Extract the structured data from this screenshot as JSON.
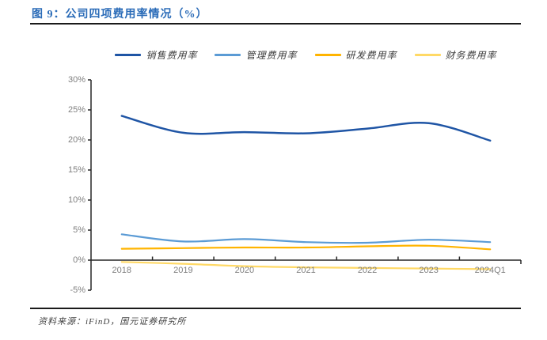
{
  "figure": {
    "title": "图 9：公司四项费用率情况（%）",
    "source": "资料来源：iFinD，国元证券研究所"
  },
  "colors": {
    "title_text": "#2B6CB8",
    "axis_line": "#262626",
    "tick_label": "#7F7F7F",
    "divider_rule": "#1A1A1A",
    "legend_text": "#3D3D3D"
  },
  "chart_data": {
    "type": "line",
    "title": "公司四项费用率情况（%）",
    "categories": [
      "2018",
      "2019",
      "2020",
      "2021",
      "2022",
      "2023",
      "2024Q1"
    ],
    "series": [
      {
        "name": "销售费用率",
        "color": "#1F55A5",
        "values": [
          24.0,
          21.2,
          21.3,
          21.1,
          21.9,
          22.8,
          19.9
        ]
      },
      {
        "name": "管理费用率",
        "color": "#5B9BD5",
        "values": [
          4.3,
          3.1,
          3.5,
          3.0,
          2.9,
          3.4,
          3.0
        ]
      },
      {
        "name": "研发费用率",
        "color": "#FFB400",
        "values": [
          1.9,
          2.0,
          2.1,
          2.1,
          2.3,
          2.4,
          1.8
        ]
      },
      {
        "name": "财务费用率",
        "color": "#FFD966",
        "values": [
          -0.3,
          -0.6,
          -1.0,
          -1.2,
          -1.3,
          -1.4,
          -1.5
        ]
      }
    ],
    "xlabel": "",
    "ylabel": "",
    "ylim": [
      -5,
      30
    ],
    "ytick_step": 5,
    "ytick_labels": [
      "30%",
      "25%",
      "20%",
      "15%",
      "10%",
      "5%",
      "0%",
      "-5%"
    ],
    "grid": false,
    "legend_position": "top"
  }
}
